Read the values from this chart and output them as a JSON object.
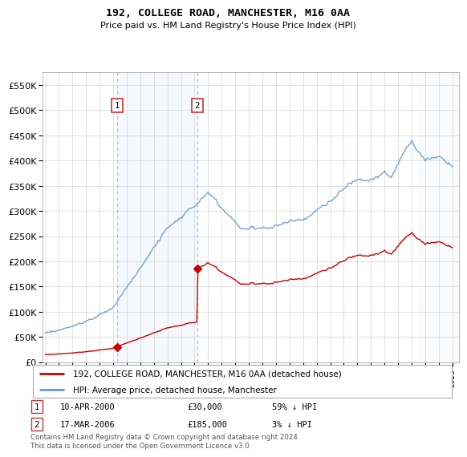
{
  "title": "192, COLLEGE ROAD, MANCHESTER, M16 0AA",
  "subtitle": "Price paid vs. HM Land Registry's House Price Index (HPI)",
  "legend_line1": "192, COLLEGE ROAD, MANCHESTER, M16 0AA (detached house)",
  "legend_line2": "HPI: Average price, detached house, Manchester",
  "footnote": "Contains HM Land Registry data © Crown copyright and database right 2024.\nThis data is licensed under the Open Government Licence v3.0.",
  "sale1_date": "10-APR-2000",
  "sale1_price_str": "£30,000",
  "sale1_pct": "59% ↓ HPI",
  "sale2_date": "17-MAR-2006",
  "sale2_price_str": "£185,000",
  "sale2_pct": "3% ↓ HPI",
  "red_color": "#cc0000",
  "blue_color": "#6699cc",
  "shade_color": "#ddeeff",
  "ylim_max": 575000,
  "ylim_min": 0,
  "xlim_min": 1994.8,
  "xlim_max": 2025.5,
  "sale1_year": 2000.28,
  "sale1_price": 30000,
  "sale2_year": 2006.21,
  "sale2_price": 185000
}
